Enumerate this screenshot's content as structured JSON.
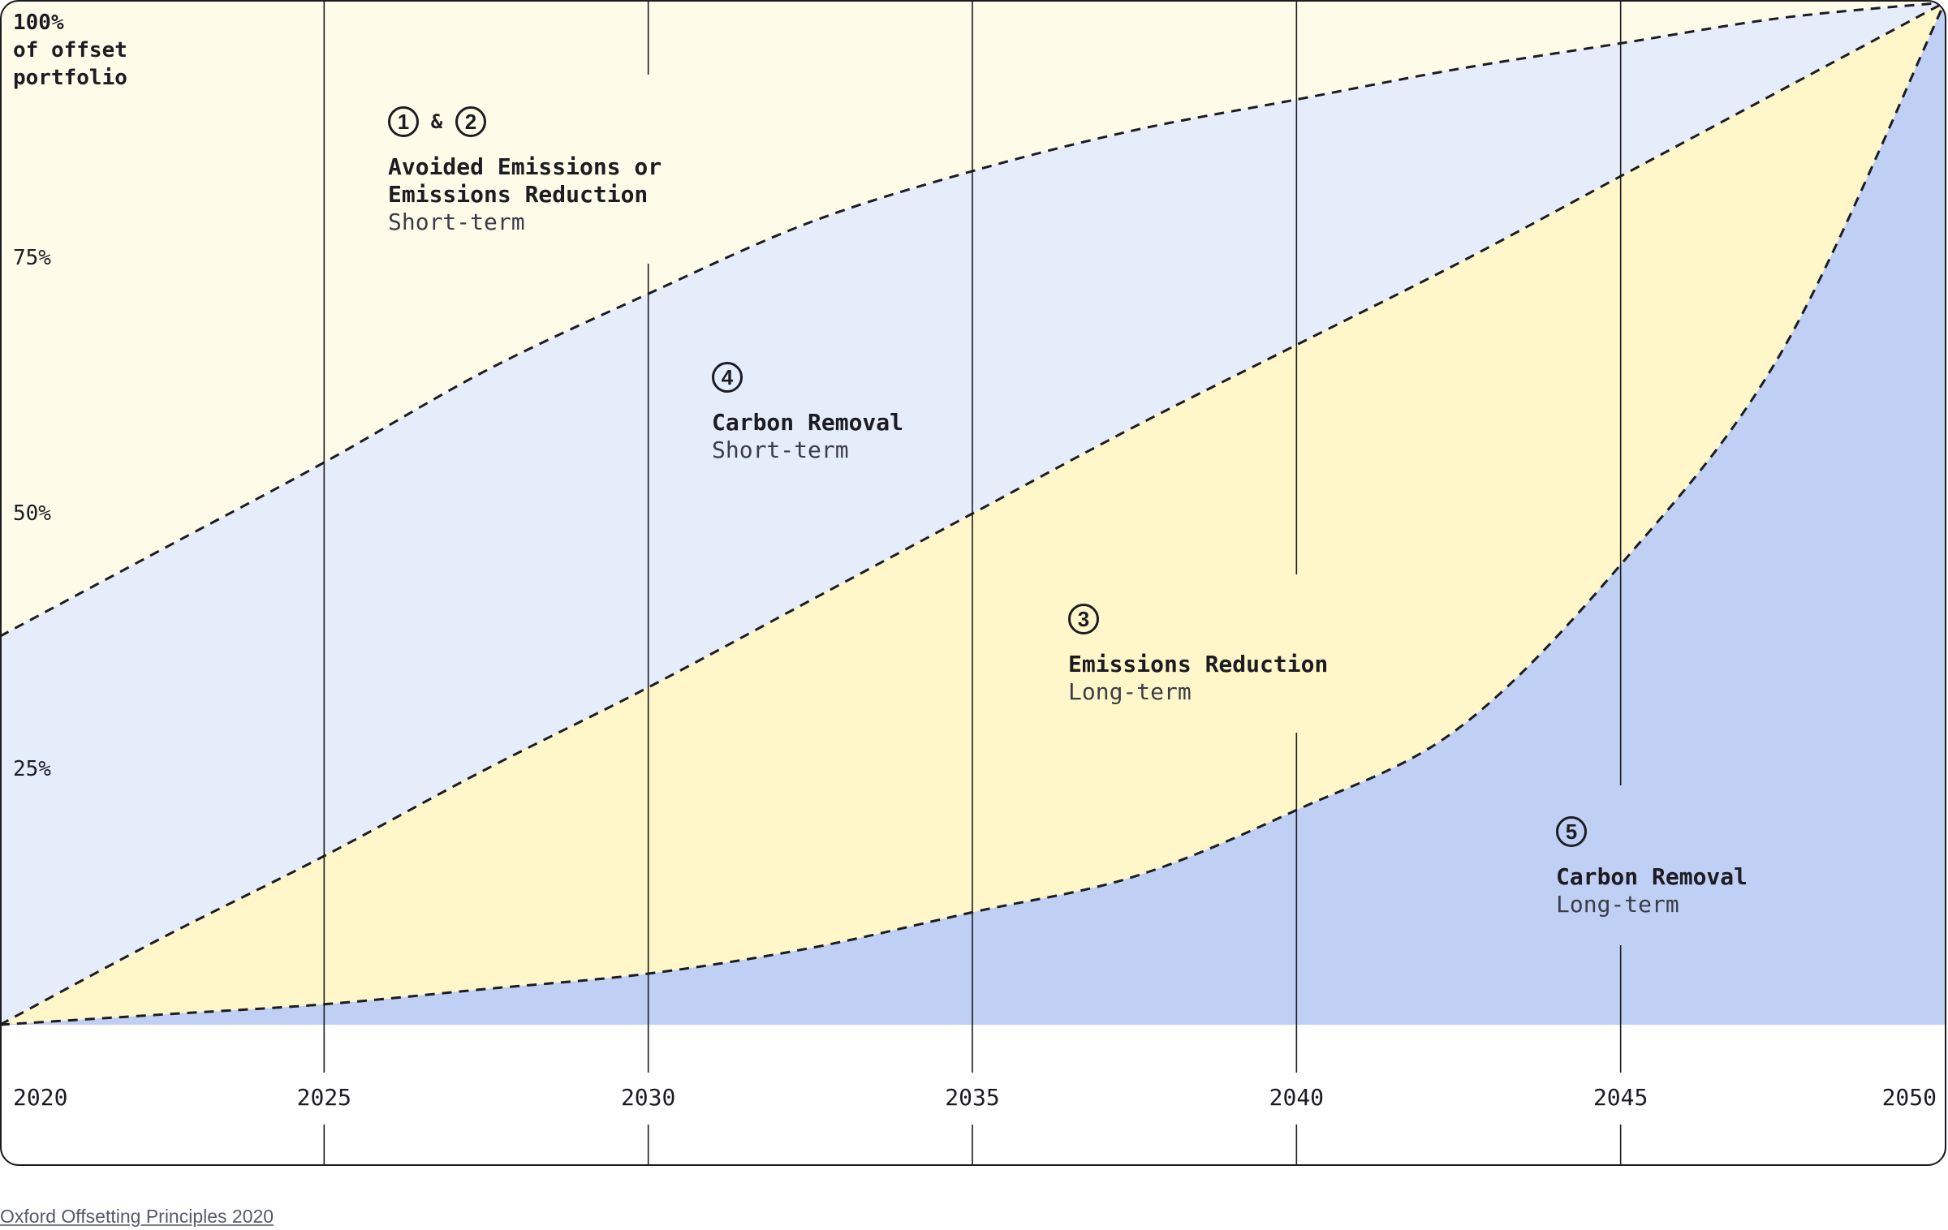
{
  "chart_data": {
    "type": "area",
    "x_ticks": [
      "2020",
      "2025",
      "2030",
      "2035",
      "2040",
      "2045",
      "2050"
    ],
    "y_ticks": [
      {
        "value": 25,
        "label": "25%"
      },
      {
        "value": 50,
        "label": "50%"
      },
      {
        "value": 75,
        "label": "75%"
      }
    ],
    "ylabel_lines": [
      "100%",
      "of offset",
      "portfolio"
    ],
    "xlim": [
      2020,
      2050
    ],
    "ylim": [
      0,
      100
    ],
    "grid": "vertical lines at year ticks",
    "boundaries": [
      {
        "x": [
          2020,
          2022.5,
          2025,
          2027.5,
          2030,
          2032.5,
          2035,
          2037.5,
          2040,
          2042.5,
          2045,
          2047.5,
          2050
        ],
        "y": [
          38,
          46.5,
          55,
          64,
          71.5,
          78.5,
          83.5,
          87.5,
          90.5,
          93.5,
          96,
          98.5,
          100
        ]
      },
      {
        "x": [
          2020,
          2022.5,
          2025,
          2027.5,
          2030,
          2032.5,
          2035,
          2037.5,
          2040,
          2042.5,
          2045,
          2047.5,
          2050
        ],
        "y": [
          0,
          8.5,
          16.5,
          25,
          33,
          41.5,
          50,
          58.5,
          66.5,
          74.5,
          83,
          91.5,
          100
        ]
      },
      {
        "x": [
          2020,
          2022.5,
          2025,
          2027.5,
          2030,
          2032.5,
          2035,
          2037.5,
          2040,
          2042.5,
          2045,
          2047.5,
          2050
        ],
        "y": [
          0,
          1,
          2,
          3.5,
          5,
          7.5,
          11,
          14.5,
          21,
          29,
          45,
          66,
          100
        ]
      }
    ],
    "regions": [
      {
        "numbers": [
          "1",
          "2"
        ],
        "connector": "&",
        "title_lines": [
          "Avoided Emissions or",
          "Emissions Reduction"
        ],
        "subtitle": "Short-term",
        "color": "#fefce9"
      },
      {
        "numbers": [
          "4"
        ],
        "title_lines": [
          "Carbon Removal"
        ],
        "subtitle": "Short-term",
        "color": "#e5ecfa"
      },
      {
        "numbers": [
          "3"
        ],
        "title_lines": [
          "Emissions Reduction"
        ],
        "subtitle": "Long-term",
        "color": "#fff7c9"
      },
      {
        "numbers": [
          "5"
        ],
        "title_lines": [
          "Carbon Removal"
        ],
        "subtitle": "Long-term",
        "color": "#bfd0f4"
      }
    ]
  },
  "colors": {
    "frame": "#1c1c22",
    "text": "#1c1c22",
    "muted_text": "#3a3d47"
  },
  "caption": "Oxford Offsetting Principles 2020"
}
